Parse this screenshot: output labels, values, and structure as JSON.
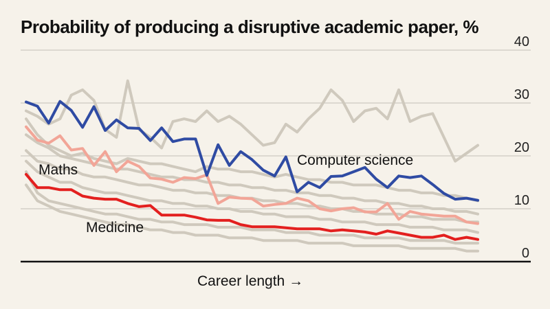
{
  "chart_data": {
    "type": "line",
    "title": "Probability of producing a disruptive academic paper, %",
    "xlabel": "Career length →",
    "ylabel": "",
    "ylim": [
      0,
      40
    ],
    "yticks": [
      0,
      10,
      20,
      30,
      40
    ],
    "grid": true,
    "colors": {
      "background": "#f6f2ea",
      "grid": "#d3cfc7",
      "other_fields": "#cfc9bd",
      "computer_science": "#2f4ba3",
      "maths": "#f2a597",
      "medicine": "#e3201f"
    },
    "series": [
      {
        "name": "Computer science",
        "highlight": true,
        "values": [
          30.2,
          29.4,
          26.2,
          30.3,
          28.6,
          25.4,
          29.3,
          24.8,
          26.8,
          25.3,
          25.2,
          22.9,
          25.3,
          22.7,
          23.2,
          23.2,
          16.3,
          22.1,
          18.2,
          20.8,
          19.3,
          17.3,
          16.2,
          19.8,
          13.2,
          15.0,
          14.0,
          16.1,
          16.2,
          17.0,
          17.8,
          15.6,
          14.0,
          16.2,
          15.9,
          16.2,
          14.6,
          12.9,
          11.8,
          12.0,
          11.6
        ]
      },
      {
        "name": "Maths",
        "highlight": true,
        "values": [
          25.5,
          23.0,
          22.4,
          23.8,
          21.1,
          21.4,
          18.2,
          20.8,
          17.0,
          19.0,
          18.0,
          15.8,
          15.6,
          15.0,
          15.9,
          15.7,
          16.4,
          11.0,
          12.2,
          12.0,
          11.9,
          10.5,
          10.8,
          11.0,
          12.0,
          11.5,
          10.0,
          9.6,
          10.0,
          10.2,
          9.4,
          9.4,
          11.0,
          8.0,
          9.5,
          9.0,
          8.8,
          8.6,
          8.6,
          7.5,
          7.2
        ]
      },
      {
        "name": "Medicine",
        "highlight": true,
        "values": [
          16.5,
          14.0,
          14.0,
          13.6,
          13.6,
          12.4,
          12.0,
          11.8,
          11.8,
          11.0,
          10.4,
          10.6,
          8.8,
          8.8,
          8.8,
          8.4,
          7.9,
          7.8,
          7.8,
          7.0,
          6.6,
          6.6,
          6.6,
          6.4,
          6.2,
          6.2,
          6.2,
          5.8,
          6.0,
          5.8,
          5.6,
          5.2,
          5.8,
          5.4,
          5.0,
          4.6,
          4.6,
          5.0,
          4.2,
          4.6,
          4.2
        ]
      },
      {
        "values": [
          28.5,
          27.5,
          26.0,
          27.0,
          31.5,
          32.5,
          30.5,
          25.0,
          23.5,
          34.2,
          25.0,
          23.5,
          21.5,
          26.5,
          27.0,
          26.5,
          28.5,
          26.5,
          27.5,
          26.0,
          24.0,
          22.0,
          22.5,
          26.0,
          24.5,
          27.0,
          29.0,
          32.5,
          30.5,
          26.5,
          28.5,
          29.0,
          27.0,
          32.5,
          26.5,
          27.5,
          28.0,
          23.5,
          19.0,
          20.5,
          22.0
        ]
      },
      {
        "values": [
          27.0,
          24.0,
          22.0,
          21.0,
          20.0,
          20.5,
          19.5,
          19.0,
          18.5,
          19.5,
          19.0,
          18.5,
          18.5,
          18.0,
          17.5,
          17.0,
          18.0,
          17.5,
          17.5,
          17.0,
          17.0,
          16.5,
          16.0,
          16.5,
          16.0,
          15.5,
          15.5,
          15.0,
          15.0,
          14.5,
          14.5,
          14.5,
          14.0,
          13.5,
          13.5,
          13.0,
          13.0,
          12.5,
          12.5,
          12.0,
          11.5
        ]
      },
      {
        "values": [
          24.0,
          22.5,
          21.5,
          20.0,
          19.5,
          19.0,
          18.5,
          18.0,
          17.5,
          17.5,
          17.0,
          16.5,
          16.0,
          16.0,
          15.5,
          15.5,
          15.0,
          15.0,
          14.5,
          14.5,
          14.0,
          14.0,
          13.5,
          13.5,
          13.0,
          13.0,
          12.5,
          12.5,
          12.0,
          12.0,
          11.5,
          11.5,
          11.0,
          11.0,
          10.5,
          10.5,
          10.0,
          10.0,
          9.5,
          9.5,
          9.0
        ]
      },
      {
        "values": [
          21.0,
          19.0,
          18.5,
          17.5,
          17.5,
          16.5,
          16.0,
          16.0,
          15.5,
          15.0,
          14.5,
          14.5,
          14.0,
          13.5,
          13.5,
          13.0,
          13.0,
          12.5,
          12.5,
          12.0,
          12.0,
          11.5,
          11.5,
          11.0,
          11.0,
          10.5,
          10.5,
          10.0,
          10.0,
          9.5,
          9.5,
          9.0,
          9.0,
          9.0,
          8.5,
          8.5,
          8.0,
          8.0,
          8.0,
          7.5,
          7.5
        ]
      },
      {
        "values": [
          19.0,
          17.0,
          16.0,
          15.0,
          15.0,
          14.0,
          13.5,
          13.0,
          13.0,
          12.5,
          12.0,
          11.5,
          11.5,
          11.0,
          11.0,
          10.5,
          10.5,
          10.0,
          10.0,
          9.5,
          9.5,
          9.0,
          9.0,
          8.5,
          8.5,
          8.5,
          8.0,
          8.0,
          7.5,
          7.5,
          7.5,
          7.0,
          7.0,
          7.0,
          6.5,
          6.5,
          6.5,
          6.0,
          6.0,
          6.0,
          5.5
        ]
      },
      {
        "values": [
          17.0,
          13.0,
          11.5,
          11.0,
          10.5,
          10.0,
          9.5,
          9.0,
          9.0,
          8.5,
          8.0,
          8.0,
          7.5,
          7.5,
          7.0,
          7.0,
          7.0,
          6.5,
          6.5,
          6.5,
          6.0,
          6.0,
          6.0,
          5.5,
          5.5,
          5.5,
          5.0,
          5.0,
          5.0,
          5.0,
          4.5,
          4.5,
          4.5,
          4.5,
          4.0,
          4.0,
          4.0,
          4.0,
          3.5,
          3.5,
          3.5
        ]
      },
      {
        "values": [
          14.5,
          11.5,
          10.5,
          9.5,
          9.0,
          8.5,
          8.0,
          7.5,
          7.0,
          7.0,
          6.5,
          6.0,
          6.0,
          5.5,
          5.5,
          5.0,
          5.0,
          5.0,
          4.5,
          4.5,
          4.5,
          4.0,
          4.0,
          4.0,
          4.0,
          3.5,
          3.5,
          3.5,
          3.5,
          3.0,
          3.0,
          3.0,
          3.0,
          3.0,
          2.5,
          2.5,
          2.5,
          2.5,
          2.5,
          2.0,
          2.0
        ]
      }
    ]
  }
}
